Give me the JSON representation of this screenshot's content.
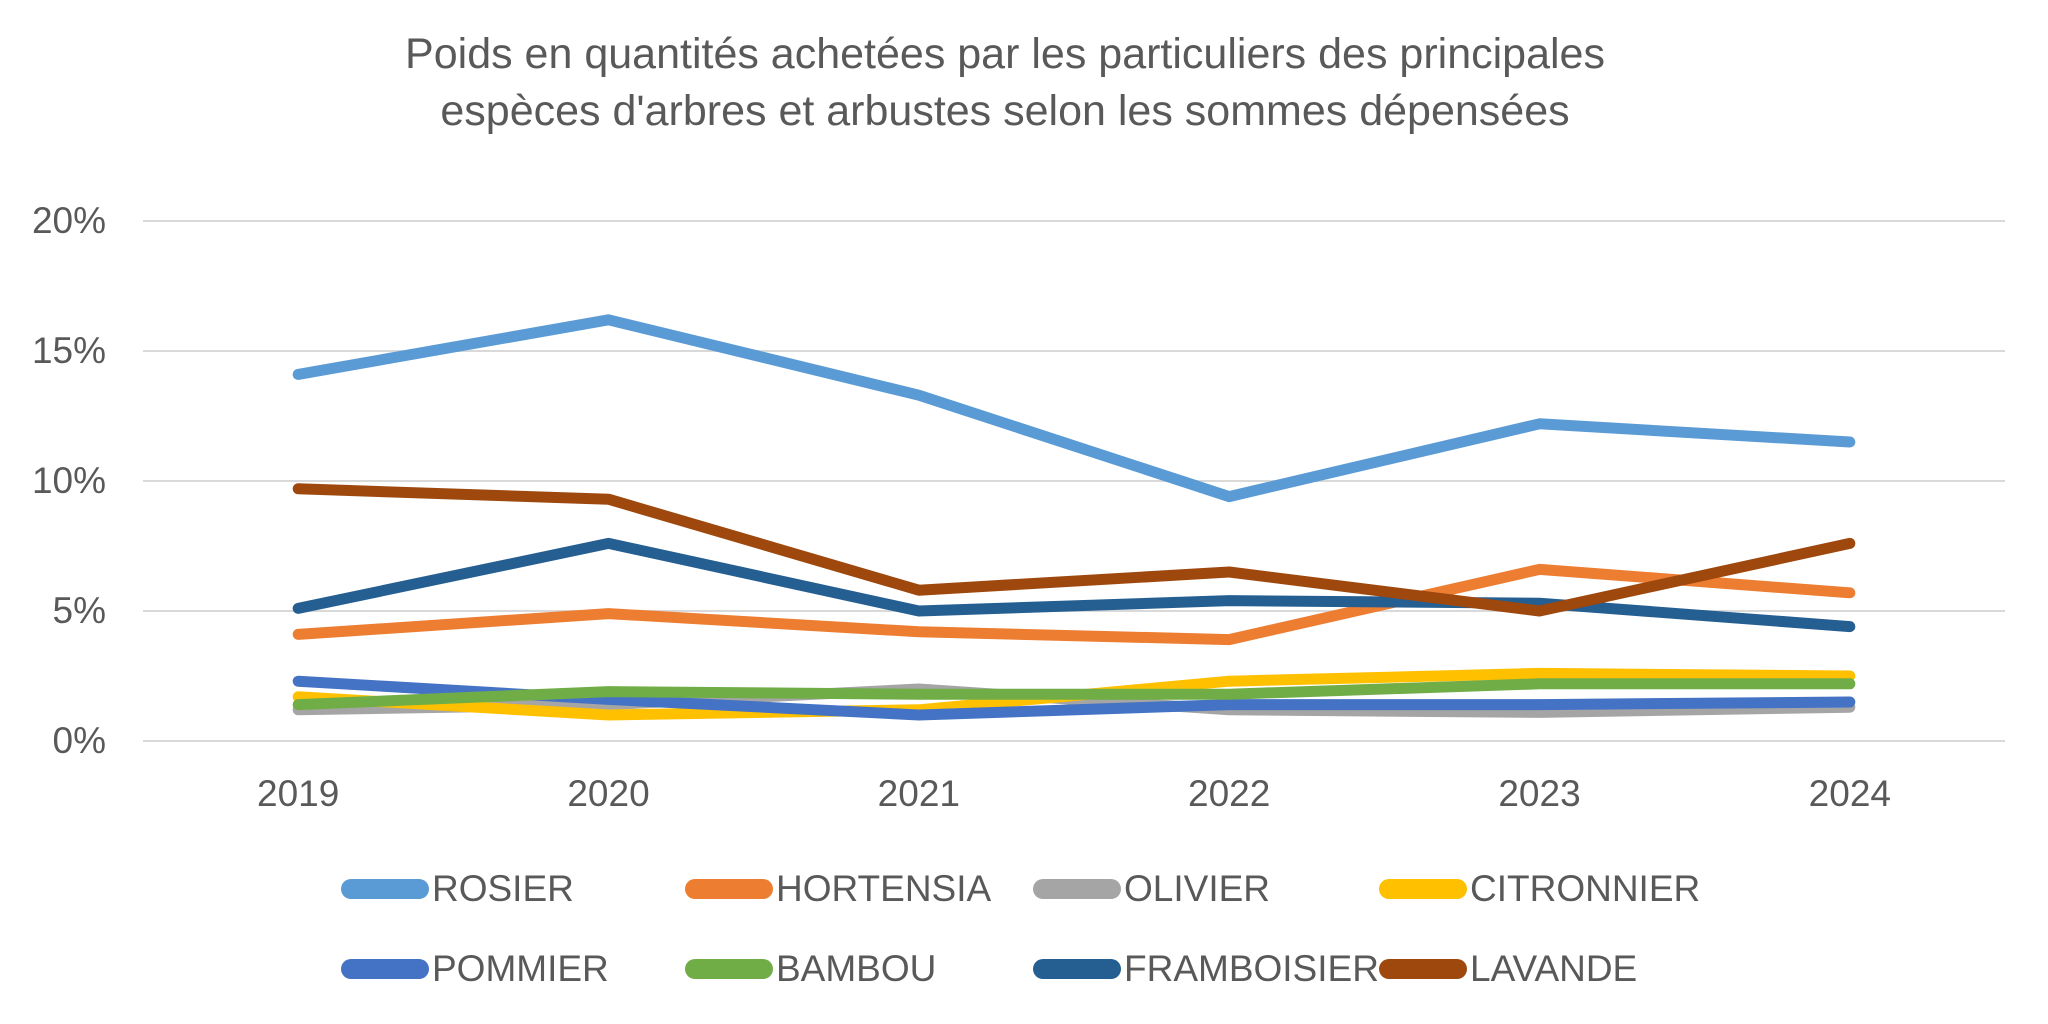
{
  "title_lines": [
    "Poids en quantités achetées par les particuliers des principales",
    "espèces d'arbres et arbustes selon les sommes dépensées"
  ],
  "colors": {
    "background": "#FFFFFF",
    "gridline": "#D9D9D9",
    "axis_text": "#595959",
    "title_text": "#595959"
  },
  "chart_data": {
    "type": "line",
    "title": "Poids en quantités achetées par les particuliers des principales espèces d'arbres et arbustes selon les sommes dépensées",
    "xlabel": "",
    "ylabel": "",
    "categories": [
      "2019",
      "2020",
      "2021",
      "2022",
      "2023",
      "2024"
    ],
    "ylim": [
      0,
      20
    ],
    "ytick_values": [
      0,
      5,
      10,
      15,
      20
    ],
    "ytick_labels": [
      "0%",
      "5%",
      "10%",
      "15%",
      "20%"
    ],
    "grid": "horizontal",
    "legend_position": "bottom",
    "series": [
      {
        "name": "ROSIER",
        "color": "#5B9BD5",
        "values": [
          14.1,
          16.2,
          13.3,
          9.4,
          12.2,
          11.5
        ]
      },
      {
        "name": "HORTENSIA",
        "color": "#ED7D31",
        "values": [
          4.1,
          4.9,
          4.2,
          3.9,
          6.6,
          5.7
        ]
      },
      {
        "name": "OLIVIER",
        "color": "#A5A5A5",
        "values": [
          1.2,
          1.4,
          2.0,
          1.2,
          1.1,
          1.3
        ]
      },
      {
        "name": "CITRONNIER",
        "color": "#FFC000",
        "values": [
          1.7,
          1.0,
          1.2,
          2.3,
          2.6,
          2.5
        ]
      },
      {
        "name": "POMMIER",
        "color": "#4472C4",
        "values": [
          2.3,
          1.6,
          1.0,
          1.4,
          1.4,
          1.5
        ]
      },
      {
        "name": "BAMBOU",
        "color": "#70AD47",
        "values": [
          1.4,
          1.9,
          1.8,
          1.8,
          2.2,
          2.2
        ]
      },
      {
        "name": "FRAMBOISIER",
        "color": "#255E91",
        "values": [
          5.1,
          7.6,
          5.0,
          5.4,
          5.3,
          4.4
        ]
      },
      {
        "name": "LAVANDE",
        "color": "#9E480E",
        "values": [
          9.7,
          9.3,
          5.8,
          6.5,
          5.0,
          7.6
        ]
      }
    ],
    "legend_rows": [
      [
        "ROSIER",
        "HORTENSIA",
        "OLIVIER",
        "CITRONNIER"
      ],
      [
        "POMMIER",
        "BAMBOU",
        "FRAMBOISIER",
        "LAVANDE"
      ]
    ]
  }
}
